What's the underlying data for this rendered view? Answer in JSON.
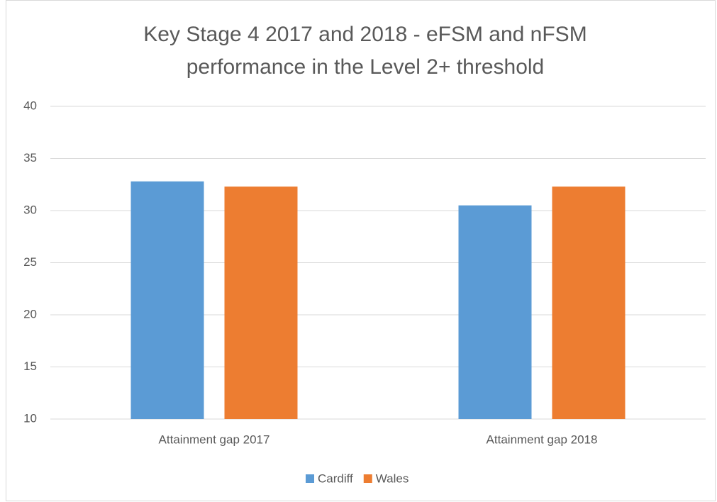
{
  "chart_data": {
    "type": "bar",
    "title": [
      "Key Stage 4 2017 and 2018 - eFSM and nFSM",
      "performance  in the Level 2+ threshold"
    ],
    "categories": [
      "Attainment gap 2017",
      "Attainment gap 2018"
    ],
    "series": [
      {
        "name": "Cardiff",
        "color": "#5b9bd5",
        "values": [
          32.8,
          30.5
        ]
      },
      {
        "name": "Wales",
        "color": "#ed7d31",
        "values": [
          32.3,
          32.3
        ]
      }
    ],
    "ylim": [
      10,
      40
    ],
    "yticks": [
      10,
      15,
      20,
      25,
      30,
      35,
      40
    ],
    "grid": true,
    "legend": "bottom"
  }
}
